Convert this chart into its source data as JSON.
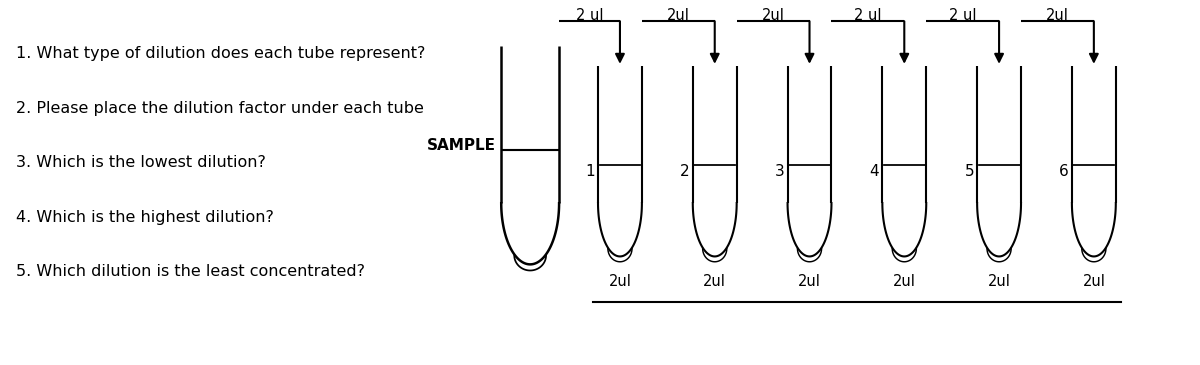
{
  "questions": [
    "1. What type of dilution does each tube represent?",
    "2. Please place the dilution factor under each tube",
    "3. Which is the lowest dilution?",
    "4. Which is the highest dilution?",
    "5. Which dilution is the least concentrated?"
  ],
  "sample_label": "SAMPLE",
  "tube_numbers": [
    "1",
    "2",
    "3",
    "4",
    "5",
    "6"
  ],
  "top_labels": [
    "2 ul",
    "2ul",
    "2ul",
    "2 ul",
    "2 ul",
    "2ul"
  ],
  "bottom_labels": [
    "2ul",
    "2ul",
    "2ul",
    "2ul",
    "2ul",
    "2ul"
  ],
  "bg_color": "#ffffff",
  "text_color": "#000000"
}
